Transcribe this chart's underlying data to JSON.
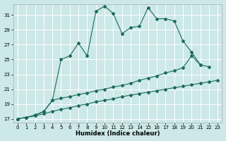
{
  "xlabel": "Humidex (Indice chaleur)",
  "bg_color": "#cce8e8",
  "grid_color": "#ffffff",
  "line_color": "#1a6b5a",
  "xlim": [
    -0.5,
    23.5
  ],
  "ylim": [
    16.5,
    32.5
  ],
  "xticks": [
    0,
    1,
    2,
    3,
    4,
    5,
    6,
    7,
    8,
    9,
    10,
    11,
    12,
    13,
    14,
    15,
    16,
    17,
    18,
    19,
    20,
    21,
    22,
    23
  ],
  "yticks": [
    17,
    19,
    21,
    23,
    25,
    27,
    29,
    31
  ],
  "series1_x": [
    0,
    1,
    2,
    3,
    4,
    5,
    6,
    7,
    8,
    9,
    10,
    11,
    12,
    13,
    14,
    15,
    16,
    17,
    18,
    19,
    20,
    21,
    22
  ],
  "series1_y": [
    17,
    17.2,
    17.5,
    18.0,
    19.5,
    25.0,
    25.5,
    27.2,
    25.5,
    31.5,
    32.2,
    31.2,
    28.5,
    29.3,
    29.5,
    32.0,
    30.5,
    30.5,
    30.2,
    27.5,
    26.0,
    24.3,
    24.0
  ],
  "series2_x": [
    0,
    1,
    2,
    3,
    4,
    5,
    6,
    7,
    8,
    9,
    10,
    11,
    12,
    13,
    14,
    15,
    16,
    17,
    18,
    19,
    20,
    21
  ],
  "series2_y": [
    17,
    17.2,
    17.5,
    18.0,
    19.5,
    19.8,
    20.0,
    20.3,
    20.5,
    20.8,
    21.0,
    21.3,
    21.5,
    21.8,
    22.2,
    22.5,
    22.8,
    23.2,
    23.5,
    23.9,
    25.5,
    24.3
  ],
  "series3_x": [
    0,
    1,
    2,
    3,
    4,
    5,
    6,
    7,
    8,
    9,
    10,
    11,
    12,
    13,
    14,
    15,
    16,
    17,
    18,
    19,
    20,
    21,
    22,
    23
  ],
  "series3_y": [
    17,
    17.2,
    17.4,
    17.7,
    18.0,
    18.3,
    18.5,
    18.8,
    19.0,
    19.3,
    19.5,
    19.7,
    20.0,
    20.2,
    20.4,
    20.6,
    20.8,
    21.0,
    21.2,
    21.4,
    21.6,
    21.8,
    22.0,
    22.2
  ]
}
